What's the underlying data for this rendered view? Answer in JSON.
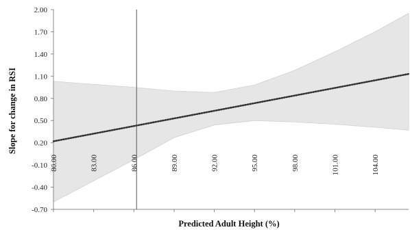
{
  "chart_data": {
    "type": "line",
    "title": "",
    "xlabel": "Predicted Adult Height (%)",
    "ylabel": "Slope for change in RSI",
    "xlim": [
      80.0,
      106.5
    ],
    "ylim": [
      -0.7,
      2.0
    ],
    "x_ticks": [
      80.0,
      83.0,
      86.0,
      89.0,
      92.0,
      95.0,
      98.0,
      101.0,
      104.0
    ],
    "x_tick_labels": [
      "80.00",
      "83.00",
      "86.00",
      "89.00",
      "92.00",
      "95.00",
      "98.00",
      "101.00",
      "104.00"
    ],
    "y_ticks": [
      2.0,
      1.7,
      1.4,
      1.1,
      0.8,
      0.5,
      0.2,
      -0.1,
      -0.4,
      -0.7
    ],
    "y_tick_labels": [
      "2.00",
      "1.70",
      "1.40",
      "1.10",
      "0.80",
      "0.50",
      "0.20",
      "-0.10",
      "-0.40",
      "-0.70"
    ],
    "grid": false,
    "series": [
      {
        "style": "dotted",
        "color": "#333333",
        "x": [
          80.0,
          106.5
        ],
        "y": [
          0.22,
          1.13
        ]
      }
    ],
    "confidence_band": {
      "color": "#e6e6e6",
      "x": [
        80.0,
        86.0,
        89.0,
        92.0,
        95.0,
        98.0,
        101.0,
        104.0,
        106.5
      ],
      "upper": [
        1.03,
        0.95,
        0.9,
        0.88,
        0.98,
        1.18,
        1.43,
        1.7,
        1.95
      ],
      "lower": [
        -0.6,
        -0.03,
        0.27,
        0.44,
        0.5,
        0.48,
        0.45,
        0.41,
        0.37
      ]
    },
    "reference_line": {
      "x": 86.2,
      "color": "#555555"
    }
  }
}
